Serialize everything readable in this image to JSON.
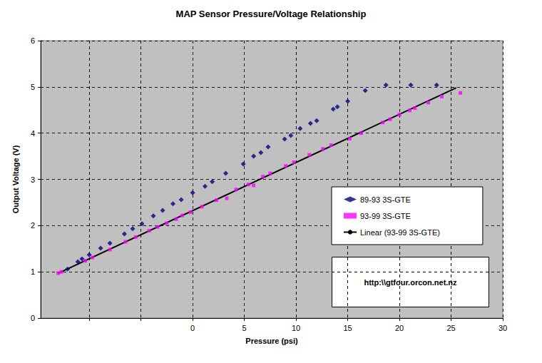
{
  "chart_data": {
    "type": "scatter",
    "title": "MAP Sensor Pressure/Voltage Relationship",
    "x_label": "Pressure (psi)",
    "y_label": "Output Voltage (V)",
    "xlim": [
      -14.7,
      30
    ],
    "xticks": [
      {
        "value": -10,
        "label": null
      },
      {
        "value": -5,
        "label": null
      },
      0,
      5,
      10,
      15,
      20,
      25,
      30
    ],
    "ylim": [
      0,
      6
    ],
    "yticks": [
      0,
      1,
      2,
      3,
      4,
      5,
      6
    ],
    "grid": true,
    "legend": "right",
    "annotations": [
      "http:\\\\gtfour.orcon.net.nz"
    ],
    "series": [
      {
        "name": "89-93 3S-GTE",
        "type": "scatter",
        "color": "#000080",
        "marker": "diamond",
        "x": [
          -12.1,
          -11.1,
          -10.7,
          -10.0,
          -8.9,
          -8.0,
          -6.6,
          -5.8,
          -4.9,
          -3.8,
          -2.9,
          -1.9,
          -1.1,
          0.0,
          1.2,
          1.9,
          3.2,
          4.9,
          5.9,
          6.6,
          7.3,
          8.9,
          9.5,
          10.4,
          11.4,
          12.0,
          13.6,
          14.0,
          15.0,
          16.7,
          18.7,
          21.1,
          23.6
        ],
        "values": [
          1.06,
          1.22,
          1.28,
          1.37,
          1.51,
          1.62,
          1.82,
          1.93,
          2.04,
          2.21,
          2.33,
          2.47,
          2.56,
          2.71,
          2.85,
          2.95,
          3.13,
          3.33,
          3.5,
          3.58,
          3.7,
          3.87,
          3.95,
          4.1,
          4.21,
          4.27,
          4.52,
          4.57,
          4.69,
          4.92,
          5.04,
          5.04,
          5.04
        ]
      },
      {
        "name": "93-99 3S-GTE",
        "type": "scatter",
        "color": "#ff00ff",
        "marker": "square",
        "x": [
          -13.0,
          -12.7,
          -10.4,
          -9.7,
          -8.0,
          -6.5,
          -5.5,
          -4.2,
          -3.4,
          -2.5,
          -1.6,
          -1.0,
          -0.2,
          0.9,
          2.3,
          3.3,
          4.2,
          5.4,
          5.9,
          6.8,
          7.5,
          9.0,
          9.8,
          11.3,
          12.6,
          13.4,
          15.2,
          16.3,
          18.4,
          19.1,
          20.0,
          21.0,
          21.5,
          22.8,
          24.1,
          25.9
        ],
        "values": [
          0.97,
          1.0,
          1.24,
          1.31,
          1.48,
          1.65,
          1.75,
          1.89,
          1.97,
          2.05,
          2.14,
          2.22,
          2.29,
          2.41,
          2.55,
          2.59,
          2.78,
          2.89,
          2.87,
          3.06,
          3.13,
          3.29,
          3.37,
          3.53,
          3.66,
          3.74,
          3.88,
          4.0,
          4.23,
          4.3,
          4.4,
          4.49,
          4.54,
          4.66,
          4.79,
          4.87
        ]
      },
      {
        "name": "Linear (93-99 3S-GTE)",
        "type": "line",
        "color": "#000000",
        "line_style": "solid",
        "x": [
          -13.0,
          25.5
        ],
        "values": [
          0.97,
          4.98
        ]
      }
    ]
  }
}
